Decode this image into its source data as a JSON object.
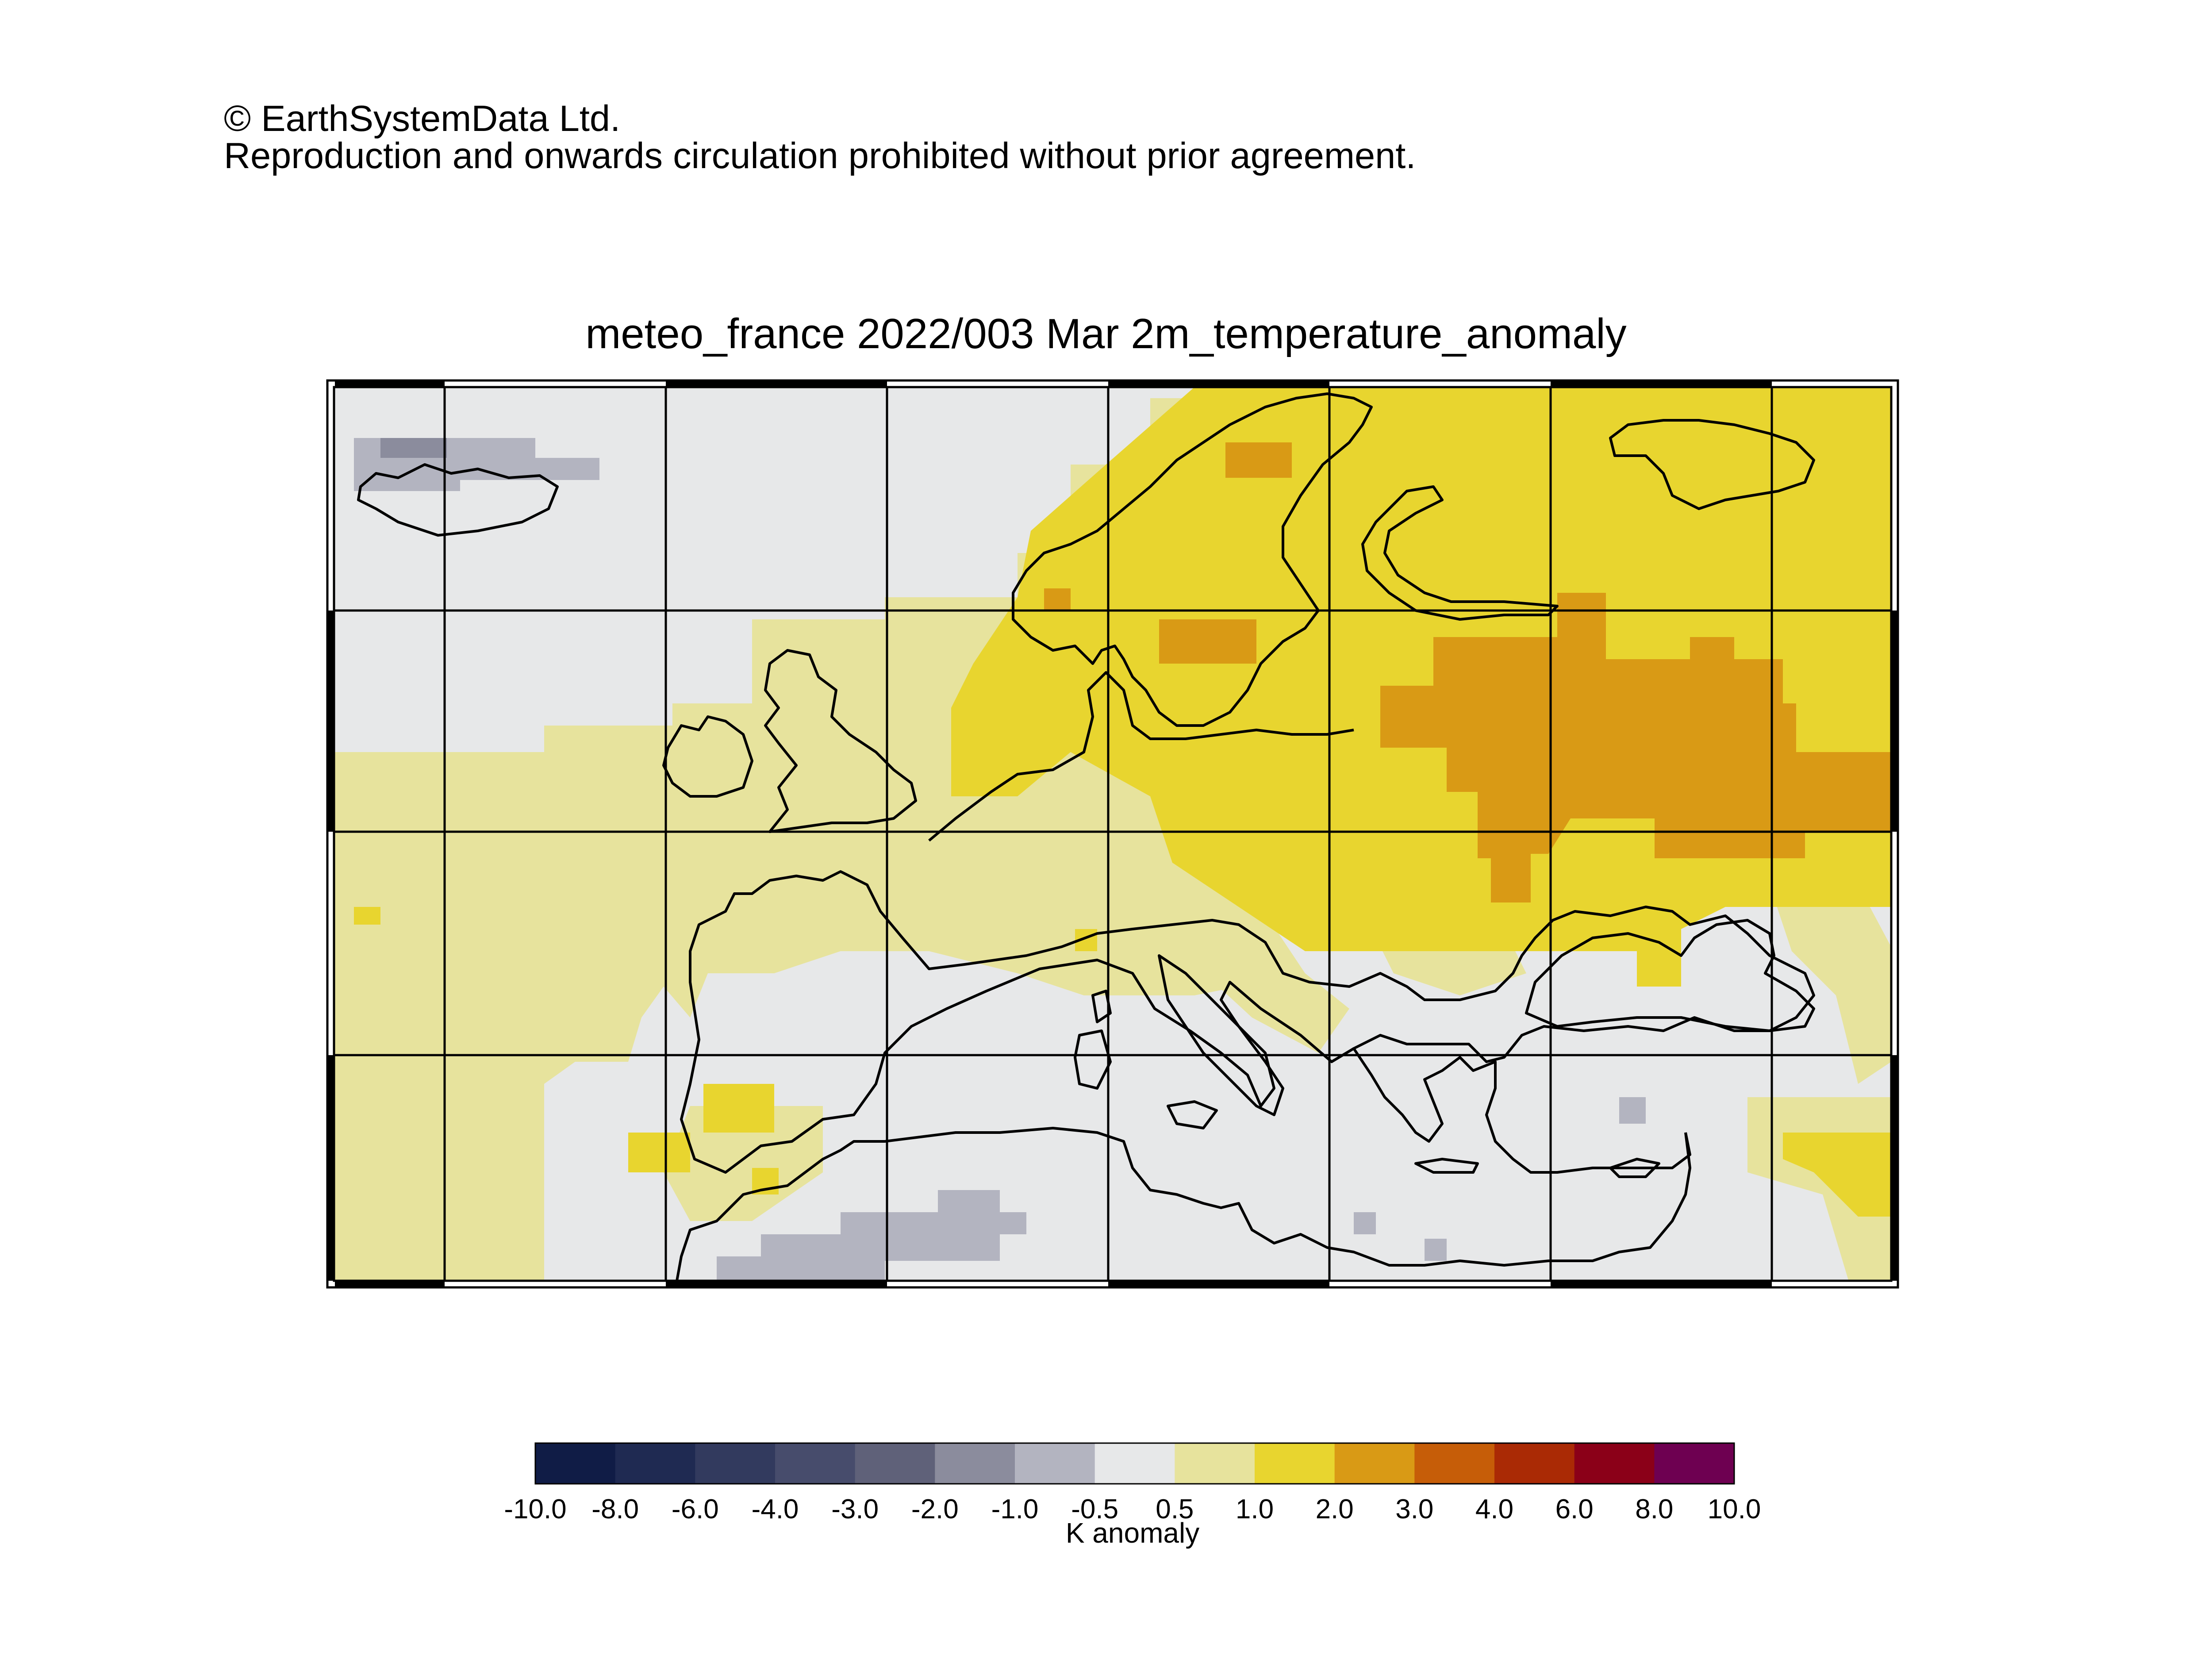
{
  "header": {
    "copyright_line": "© EarthSystemData Ltd.",
    "notice_line": "Reproduction and onwards circulation prohibited without prior agreement."
  },
  "map": {
    "title": "meteo_france 2022/003 Mar 2m_temperature_anomaly",
    "region": "Europe and Mediterranean",
    "coastline_color": "#000000",
    "gridline_color": "#000000"
  },
  "legend": {
    "unit_label": "K anomaly",
    "ticks": [
      "-10.0",
      "-8.0",
      "-6.0",
      "-4.0",
      "-3.0",
      "-2.0",
      "-1.0",
      "-0.5",
      "0.5",
      "1.0",
      "2.0",
      "3.0",
      "4.0",
      "6.0",
      "8.0",
      "10.0"
    ],
    "colors": [
      "#101c46",
      "#1f2a52",
      "#323a5e",
      "#474c6c",
      "#5f6179",
      "#8b8c9d",
      "#b3b4c0",
      "#e7e8e9",
      "#e7e39d",
      "#e8d52f",
      "#d99a15",
      "#c65d08",
      "#aa2a05",
      "#8b0018",
      "#6e0051"
    ]
  },
  "chart_data": {
    "type": "heatmap",
    "title": "meteo_france 2022/003 Mar 2m_temperature_anomaly",
    "colorbar_label": "K anomaly",
    "bins": [
      "-10.0",
      "-8.0",
      "-6.0",
      "-4.0",
      "-3.0",
      "-2.0",
      "-1.0",
      "-0.5",
      "0.5",
      "1.0",
      "2.0",
      "3.0",
      "4.0",
      "6.0",
      "8.0",
      "10.0"
    ],
    "anomaly_classes": {
      "iberia_and_atlantic": "0.5 to 1.0",
      "scandinavia_and_central_europe": "1.0 to 2.0",
      "western_russia_and_baltic": "2.0 to 3.0",
      "mediterranean_and_north_africa": "-0.5 to 0.5",
      "iceland_and_sahara_patches": "-2.0 to -0.5"
    }
  }
}
